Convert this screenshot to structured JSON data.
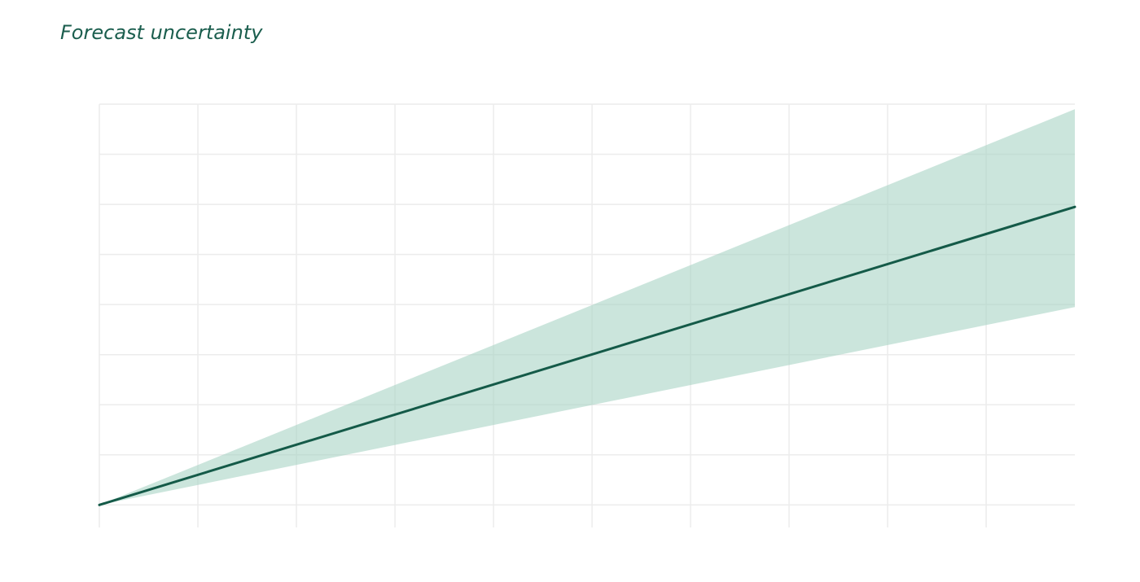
{
  "title": "Forecast uncertainty",
  "colors": {
    "title": "#1b5e4e",
    "line": "#145a48",
    "band": "#a9d3c4",
    "grid": "#ececec"
  },
  "chart_data": {
    "type": "area",
    "title": "Forecast uncertainty",
    "xlabel": "",
    "ylabel": "",
    "grid": true,
    "x_ticks_shown": false,
    "y_ticks_shown": false,
    "xlim": [
      0,
      9.9
    ],
    "ylim": [
      -0.45,
      8
    ],
    "x_gridlines": [
      0,
      1,
      2,
      3,
      4,
      5,
      6,
      7,
      8,
      9
    ],
    "y_gridlines": [
      0,
      1,
      2,
      3,
      4,
      5,
      6,
      7,
      8
    ],
    "series": [
      {
        "role": "band",
        "x": [
          0,
          9.9
        ],
        "lower": [
          0,
          3.95
        ],
        "upper": [
          0,
          7.9
        ]
      },
      {
        "role": "line",
        "x": [
          0,
          9.9
        ],
        "y": [
          0,
          5.95
        ]
      }
    ]
  }
}
